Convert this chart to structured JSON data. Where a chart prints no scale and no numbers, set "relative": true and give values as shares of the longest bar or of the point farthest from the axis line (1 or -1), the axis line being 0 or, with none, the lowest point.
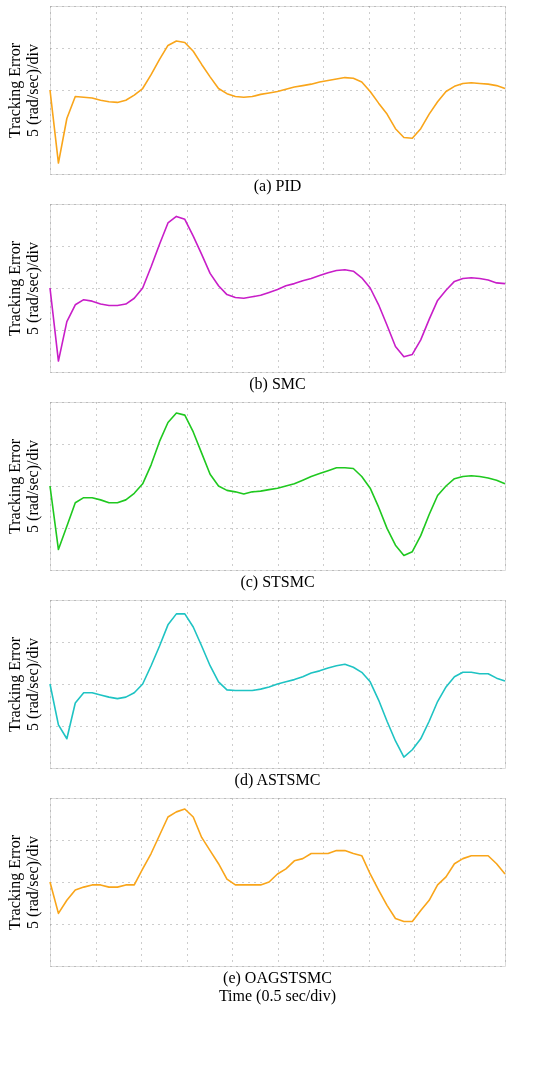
{
  "chart_data": [
    {
      "type": "line",
      "title": "(a) PID",
      "ylabel": "Tracking Error\n5 (rad/sec)/div",
      "relative": true,
      "grid": true,
      "categories": [
        null,
        null,
        null,
        null,
        null,
        null,
        null,
        null,
        null,
        null,
        null,
        null,
        null,
        null,
        null,
        null,
        null,
        null,
        null,
        null,
        null,
        null,
        null,
        null,
        null,
        null,
        null,
        null,
        null,
        null,
        null,
        null,
        null,
        null,
        null,
        null,
        null,
        null,
        null,
        null,
        null,
        null,
        null,
        null,
        null,
        null,
        null,
        null,
        null,
        null,
        null,
        null,
        null,
        null,
        null
      ],
      "series": [
        {
          "color": "#f9a51a",
          "values": [
            0,
            -1,
            -0.39,
            -0.09,
            -0.1,
            -0.11,
            -0.14,
            -0.16,
            -0.17,
            -0.14,
            -0.07,
            0.02,
            0.21,
            0.42,
            0.61,
            0.67,
            0.65,
            0.53,
            0.35,
            0.18,
            0.02,
            -0.05,
            -0.09,
            -0.1,
            -0.09,
            -0.06,
            -0.04,
            -0.02,
            0.01,
            0.04,
            0.06,
            0.08,
            0.11,
            0.13,
            0.15,
            0.17,
            0.16,
            0.11,
            -0.02,
            -0.18,
            -0.33,
            -0.53,
            -0.65,
            -0.66,
            -0.53,
            -0.33,
            -0.16,
            -0.02,
            0.05,
            0.09,
            0.1,
            0.09,
            0.08,
            0.06,
            0.02
          ]
        }
      ]
    },
    {
      "type": "line",
      "title": "(b) SMC",
      "ylabel": "Tracking Error\n5 (rad/sec)/div",
      "relative": true,
      "grid": true,
      "categories": [
        null,
        null,
        null,
        null,
        null,
        null,
        null,
        null,
        null,
        null,
        null,
        null,
        null,
        null,
        null,
        null,
        null,
        null,
        null,
        null,
        null,
        null,
        null,
        null,
        null,
        null,
        null,
        null,
        null,
        null,
        null,
        null,
        null,
        null,
        null,
        null,
        null,
        null,
        null,
        null,
        null,
        null,
        null,
        null,
        null,
        null,
        null,
        null,
        null,
        null,
        null,
        null,
        null,
        null,
        null
      ],
      "series": [
        {
          "color": "#c81ec8",
          "values": [
            0,
            -1,
            -0.46,
            -0.23,
            -0.16,
            -0.18,
            -0.22,
            -0.24,
            -0.24,
            -0.22,
            -0.14,
            0,
            0.29,
            0.6,
            0.89,
            0.98,
            0.94,
            0.71,
            0.46,
            0.2,
            0.03,
            -0.09,
            -0.13,
            -0.14,
            -0.12,
            -0.1,
            -0.06,
            -0.02,
            0.03,
            0.06,
            0.1,
            0.13,
            0.17,
            0.21,
            0.24,
            0.25,
            0.23,
            0.14,
            0,
            -0.23,
            -0.51,
            -0.8,
            -0.94,
            -0.91,
            -0.71,
            -0.43,
            -0.17,
            -0.03,
            0.09,
            0.13,
            0.14,
            0.13,
            0.11,
            0.07,
            0.06
          ]
        }
      ]
    },
    {
      "type": "line",
      "title": "(c) STSMC",
      "ylabel": "Tracking Error\n5 (rad/sec)/div",
      "relative": true,
      "grid": true,
      "categories": [
        null,
        null,
        null,
        null,
        null,
        null,
        null,
        null,
        null,
        null,
        null,
        null,
        null,
        null,
        null,
        null,
        null,
        null,
        null,
        null,
        null,
        null,
        null,
        null,
        null,
        null,
        null,
        null,
        null,
        null,
        null,
        null,
        null,
        null,
        null,
        null,
        null,
        null,
        null,
        null,
        null,
        null,
        null,
        null,
        null,
        null,
        null,
        null,
        null,
        null,
        null,
        null,
        null,
        null,
        null
      ],
      "series": [
        {
          "color": "#1fc81f",
          "values": [
            0,
            -0.87,
            -0.55,
            -0.23,
            -0.16,
            -0.16,
            -0.19,
            -0.23,
            -0.23,
            -0.19,
            -0.1,
            0.03,
            0.29,
            0.61,
            0.87,
            1,
            0.97,
            0.74,
            0.45,
            0.16,
            0,
            -0.06,
            -0.08,
            -0.11,
            -0.08,
            -0.07,
            -0.05,
            -0.03,
            0,
            0.03,
            0.08,
            0.13,
            0.17,
            0.21,
            0.25,
            0.25,
            0.24,
            0.13,
            -0.03,
            -0.29,
            -0.58,
            -0.81,
            -0.95,
            -0.9,
            -0.68,
            -0.39,
            -0.13,
            0,
            0.1,
            0.13,
            0.14,
            0.13,
            0.11,
            0.08,
            0.03
          ]
        }
      ]
    },
    {
      "type": "line",
      "title": "(d) ASTSMC",
      "ylabel": "Tracking Error\n5 (rad/sec)/div",
      "relative": true,
      "grid": true,
      "categories": [
        null,
        null,
        null,
        null,
        null,
        null,
        null,
        null,
        null,
        null,
        null,
        null,
        null,
        null,
        null,
        null,
        null,
        null,
        null,
        null,
        null,
        null,
        null,
        null,
        null,
        null,
        null,
        null,
        null,
        null,
        null,
        null,
        null,
        null,
        null,
        null,
        null,
        null,
        null,
        null,
        null,
        null,
        null,
        null,
        null,
        null,
        null,
        null,
        null,
        null,
        null,
        null,
        null,
        null,
        null
      ],
      "series": [
        {
          "color": "#1ec3c3",
          "values": [
            0,
            -0.56,
            -0.75,
            -0.26,
            -0.12,
            -0.12,
            -0.15,
            -0.18,
            -0.2,
            -0.18,
            -0.12,
            0,
            0.25,
            0.52,
            0.81,
            0.96,
            0.96,
            0.78,
            0.52,
            0.25,
            0.03,
            -0.08,
            -0.09,
            -0.09,
            -0.09,
            -0.07,
            -0.04,
            0,
            0.03,
            0.06,
            0.1,
            0.15,
            0.18,
            0.22,
            0.25,
            0.27,
            0.23,
            0.16,
            0.03,
            -0.22,
            -0.51,
            -0.78,
            -1,
            -0.9,
            -0.75,
            -0.51,
            -0.24,
            -0.04,
            0.1,
            0.16,
            0.16,
            0.14,
            0.14,
            0.08,
            0.04
          ]
        }
      ]
    },
    {
      "type": "line",
      "title": "(e) OAGSTSMC",
      "xlabel": "Time (0.5 sec/div)",
      "ylabel": "Tracking Error\n5 (rad/sec)/div",
      "relative": true,
      "grid": true,
      "categories": [
        null,
        null,
        null,
        null,
        null,
        null,
        null,
        null,
        null,
        null,
        null,
        null,
        null,
        null,
        null,
        null,
        null,
        null,
        null,
        null,
        null,
        null,
        null,
        null,
        null,
        null,
        null,
        null,
        null,
        null,
        null,
        null,
        null,
        null,
        null,
        null,
        null,
        null,
        null,
        null,
        null,
        null,
        null,
        null,
        null,
        null,
        null,
        null,
        null,
        null,
        null,
        null,
        null,
        null,
        null
      ],
      "series": [
        {
          "color": "#f9a51a",
          "values": [
            0,
            -0.43,
            -0.25,
            -0.11,
            -0.07,
            -0.04,
            -0.04,
            -0.07,
            -0.07,
            -0.04,
            -0.04,
            0.18,
            0.39,
            0.64,
            0.89,
            0.96,
            1,
            0.89,
            0.61,
            0.43,
            0.25,
            0.04,
            -0.04,
            -0.04,
            -0.04,
            -0.04,
            0,
            0.11,
            0.18,
            0.29,
            0.32,
            0.39,
            0.39,
            0.39,
            0.43,
            0.43,
            0.39,
            0.36,
            0.11,
            -0.11,
            -0.32,
            -0.5,
            -0.54,
            -0.54,
            -0.39,
            -0.25,
            -0.04,
            0.07,
            0.25,
            0.32,
            0.36,
            0.36,
            0.36,
            0.25,
            0.11
          ]
        }
      ]
    }
  ]
}
